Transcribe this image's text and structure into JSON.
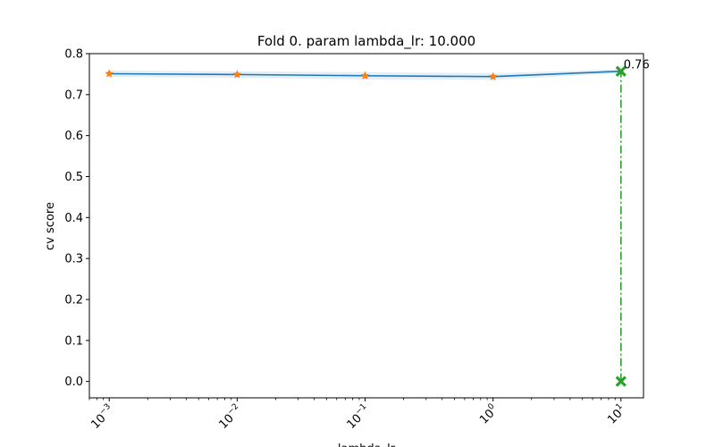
{
  "chart_data": {
    "type": "line",
    "title": "Fold 0. param lambda_lr: 10.000",
    "xlabel": "lambda_lr",
    "ylabel": "cv score",
    "xscale": "log",
    "xlim": [
      0.0007,
      15
    ],
    "ylim": [
      -0.04,
      0.8
    ],
    "x": [
      0.001,
      0.01,
      0.1,
      1,
      10
    ],
    "x_tick_labels": [
      {
        "base": "10",
        "exp": "−3"
      },
      {
        "base": "10",
        "exp": "−2"
      },
      {
        "base": "10",
        "exp": "−1"
      },
      {
        "base": "10",
        "exp": "0"
      },
      {
        "base": "10",
        "exp": "1"
      }
    ],
    "y_ticks": [
      "0.0",
      "0.1",
      "0.2",
      "0.3",
      "0.4",
      "0.5",
      "0.6",
      "0.7",
      "0.8"
    ],
    "series": [
      {
        "values": [
          0.751,
          0.749,
          0.746,
          0.744,
          0.757
        ],
        "band_lower": [
          0.743,
          0.741,
          0.737,
          0.736,
          0.752
        ],
        "band_upper": [
          0.759,
          0.757,
          0.755,
          0.752,
          0.762
        ],
        "line_color": "#1f77b4",
        "marker_color": "#ff7f0e",
        "band_color": "#1f77b4"
      }
    ],
    "best": {
      "x": 10,
      "y": 0.757,
      "label": "0.76",
      "color": "#2ca02c"
    },
    "grid": false
  }
}
